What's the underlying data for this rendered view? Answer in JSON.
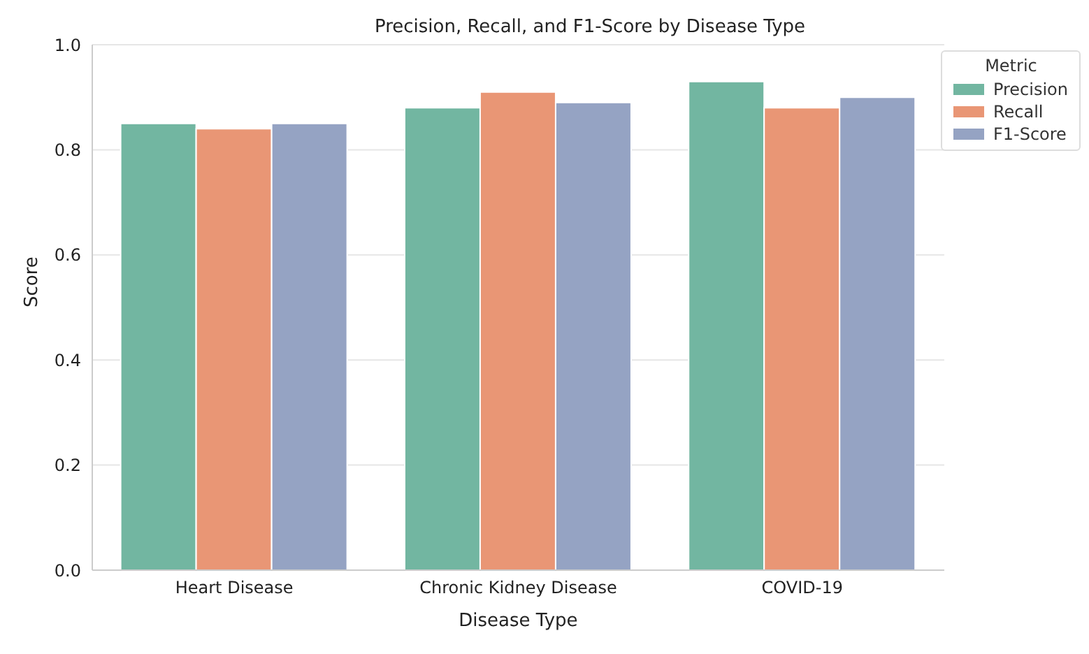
{
  "chart_data": {
    "type": "bar",
    "title": "Precision, Recall, and F1-Score by Disease Type",
    "xlabel": "Disease Type",
    "ylabel": "Score",
    "legend_title": "Metric",
    "categories": [
      "Heart Disease",
      "Chronic Kidney Disease",
      "COVID-19"
    ],
    "series": [
      {
        "name": "Precision",
        "color": "#72b6a1",
        "values": [
          0.85,
          0.88,
          0.93
        ]
      },
      {
        "name": "Recall",
        "color": "#e99675",
        "values": [
          0.84,
          0.91,
          0.88
        ]
      },
      {
        "name": "F1-Score",
        "color": "#95a3c3",
        "values": [
          0.85,
          0.89,
          0.9
        ]
      }
    ],
    "ylim": [
      0,
      1
    ],
    "yticks": [
      {
        "value": 0,
        "label": "0.0"
      },
      {
        "value": 0.2,
        "label": "0.2"
      },
      {
        "value": 0.4,
        "label": "0.4"
      },
      {
        "value": 0.6,
        "label": "0.6"
      },
      {
        "value": 0.8,
        "label": "0.8"
      },
      {
        "value": 1,
        "label": "1.0"
      }
    ],
    "grid": "y",
    "legend": "top right"
  }
}
